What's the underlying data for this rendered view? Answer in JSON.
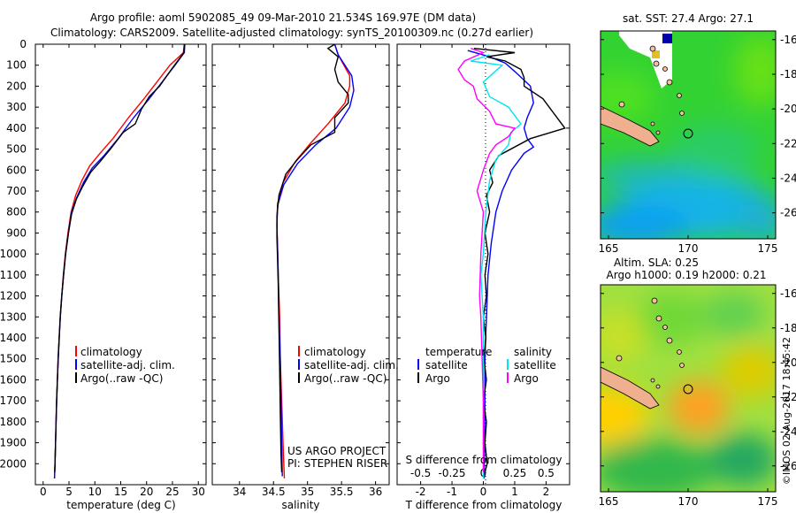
{
  "header": {
    "line1": "Argo profile: aoml 5902085_49 09-Mar-2010 21.534S 169.97E (DM data)",
    "line2": "Climatology: CARS2009. Satellite-adjusted climatology: synTS_20100309.nc (0.27d earlier)"
  },
  "colors": {
    "climatology": "#ff0000",
    "satellite": "#0000ff",
    "argo": "#000000",
    "sat_salinity": "#00e5ee",
    "argo_salinity": "#ff00ff"
  },
  "chart_data": [
    {
      "type": "line",
      "id": "temperature",
      "xlabel": "temperature (deg C)",
      "ylabel": "",
      "xlim": [
        -1.5,
        31.5
      ],
      "ylim": [
        2100,
        0
      ],
      "xticks": [
        "0",
        "5",
        "10",
        "15",
        "20",
        "25",
        "30"
      ],
      "yticks": [
        "0",
        "100",
        "200",
        "300",
        "400",
        "500",
        "600",
        "700",
        "800",
        "900",
        "1000",
        "1100",
        "1200",
        "1300",
        "1400",
        "1500",
        "1600",
        "1700",
        "1800",
        "1900",
        "2000"
      ],
      "legend": [
        "climatology",
        "satellite-adj. clim.",
        "Argo(..raw -QC)"
      ],
      "series": [
        {
          "name": "climatology",
          "points": [
            [
              27.3,
              0
            ],
            [
              27.1,
              40
            ],
            [
              24.5,
              100
            ],
            [
              22,
              180
            ],
            [
              19.5,
              260
            ],
            [
              16.5,
              350
            ],
            [
              13.5,
              450
            ],
            [
              11,
              520
            ],
            [
              9,
              580
            ],
            [
              7.5,
              650
            ],
            [
              6.3,
              720
            ],
            [
              5.4,
              800
            ],
            [
              4.8,
              900
            ],
            [
              4.3,
              1000
            ],
            [
              3.9,
              1100
            ],
            [
              3.6,
              1200
            ],
            [
              3.3,
              1300
            ],
            [
              3.1,
              1400
            ],
            [
              2.9,
              1500
            ],
            [
              2.75,
              1600
            ],
            [
              2.6,
              1700
            ],
            [
              2.5,
              1800
            ],
            [
              2.4,
              1900
            ],
            [
              2.3,
              2000
            ],
            [
              2.2,
              2070
            ]
          ]
        },
        {
          "name": "satellite-adj. clim.",
          "points": [
            [
              27.4,
              0
            ],
            [
              27.3,
              40
            ],
            [
              25.5,
              100
            ],
            [
              23,
              180
            ],
            [
              20.5,
              260
            ],
            [
              17.5,
              350
            ],
            [
              14.5,
              450
            ],
            [
              11.8,
              530
            ],
            [
              9.5,
              590
            ],
            [
              7.8,
              660
            ],
            [
              6.5,
              730
            ],
            [
              5.5,
              800
            ],
            [
              4.9,
              900
            ],
            [
              4.35,
              1000
            ],
            [
              3.95,
              1100
            ],
            [
              3.62,
              1200
            ],
            [
              3.32,
              1300
            ],
            [
              3.12,
              1400
            ],
            [
              2.92,
              1500
            ],
            [
              2.76,
              1600
            ],
            [
              2.62,
              1700
            ],
            [
              2.5,
              1800
            ],
            [
              2.4,
              1900
            ],
            [
              2.3,
              2000
            ],
            [
              2.2,
              2070
            ]
          ]
        },
        {
          "name": "Argo(..raw -QC)",
          "points": [
            [
              27.3,
              0
            ],
            [
              27.2,
              40
            ],
            [
              26,
              80
            ],
            [
              24.5,
              130
            ],
            [
              22.5,
              200
            ],
            [
              20.5,
              250
            ],
            [
              19,
              310
            ],
            [
              17.8,
              380
            ],
            [
              15.5,
              420
            ],
            [
              13,
              500
            ],
            [
              11,
              560
            ],
            [
              9.2,
              610
            ],
            [
              7.6,
              680
            ],
            [
              6.4,
              740
            ],
            [
              5.5,
              810
            ],
            [
              4.9,
              900
            ],
            [
              4.35,
              1000
            ],
            [
              3.95,
              1100
            ],
            [
              3.6,
              1200
            ],
            [
              3.3,
              1300
            ],
            [
              3.1,
              1400
            ],
            [
              2.9,
              1500
            ],
            [
              2.75,
              1600
            ],
            [
              2.6,
              1700
            ],
            [
              2.5,
              1800
            ],
            [
              2.4,
              1900
            ],
            [
              2.3,
              2000
            ],
            [
              2.25,
              2040
            ]
          ]
        }
      ]
    },
    {
      "type": "line",
      "id": "salinity",
      "xlabel": "salinity",
      "xlim": [
        33.6,
        36.2
      ],
      "ylim": [
        2100,
        0
      ],
      "xticks": [
        "34",
        "34.5",
        "35",
        "35.5",
        "36"
      ],
      "legend": [
        "climatology",
        "satellite-adj. clim.",
        "Argo(..raw -QC)"
      ],
      "credit": [
        "US ARGO PROJECT",
        "PI: STEPHEN RISER"
      ],
      "series": [
        {
          "name": "climatology",
          "points": [
            [
              35.4,
              0
            ],
            [
              35.45,
              50
            ],
            [
              35.62,
              150
            ],
            [
              35.62,
              200
            ],
            [
              35.55,
              280
            ],
            [
              35.3,
              380
            ],
            [
              35.05,
              470
            ],
            [
              34.82,
              560
            ],
            [
              34.64,
              660
            ],
            [
              34.56,
              760
            ],
            [
              34.55,
              860
            ],
            [
              34.56,
              960
            ],
            [
              34.57,
              1100
            ],
            [
              34.59,
              1300
            ],
            [
              34.6,
              1500
            ],
            [
              34.62,
              1700
            ],
            [
              34.64,
              1900
            ],
            [
              34.66,
              2070
            ]
          ]
        },
        {
          "name": "satellite-adj. clim.",
          "points": [
            [
              35.4,
              0
            ],
            [
              35.45,
              50
            ],
            [
              35.65,
              150
            ],
            [
              35.68,
              220
            ],
            [
              35.62,
              300
            ],
            [
              35.42,
              400
            ],
            [
              35.12,
              480
            ],
            [
              34.85,
              570
            ],
            [
              34.65,
              670
            ],
            [
              34.56,
              770
            ],
            [
              34.55,
              870
            ],
            [
              34.56,
              970
            ],
            [
              34.57,
              1100
            ],
            [
              34.58,
              1300
            ],
            [
              34.6,
              1500
            ],
            [
              34.61,
              1700
            ],
            [
              34.62,
              1900
            ],
            [
              34.63,
              2060
            ]
          ]
        },
        {
          "name": "Argo(..raw -QC)",
          "points": [
            [
              35.4,
              0
            ],
            [
              35.3,
              20
            ],
            [
              35.45,
              60
            ],
            [
              35.4,
              120
            ],
            [
              35.45,
              180
            ],
            [
              35.6,
              240
            ],
            [
              35.6,
              280
            ],
            [
              35.4,
              350
            ],
            [
              35.4,
              420
            ],
            [
              35.05,
              480
            ],
            [
              34.85,
              550
            ],
            [
              34.68,
              620
            ],
            [
              34.58,
              720
            ],
            [
              34.55,
              820
            ],
            [
              34.55,
              920
            ],
            [
              34.56,
              1020
            ],
            [
              34.57,
              1150
            ],
            [
              34.58,
              1350
            ],
            [
              34.59,
              1550
            ],
            [
              34.6,
              1750
            ],
            [
              34.61,
              1950
            ],
            [
              34.62,
              2040
            ]
          ]
        }
      ]
    },
    {
      "type": "line",
      "id": "differences",
      "xlabel": "T difference from climatology",
      "x2label": "S difference from climatology",
      "xlim": [
        -2.75,
        2.75
      ],
      "ylim": [
        2100,
        0
      ],
      "xticks": [
        "-2",
        "-1",
        "0",
        "1",
        "2"
      ],
      "x2ticks": [
        "-0.5",
        "-0.25",
        "0",
        "0.25",
        "0.5"
      ],
      "legend_t_title": "temperature",
      "legend_s_title": "salinity",
      "legend_t": [
        "satellite",
        "Argo"
      ],
      "legend_s": [
        "satellite",
        "Argo"
      ],
      "series": [
        {
          "name": "T satellite",
          "points": [
            [
              -0.5,
              30
            ],
            [
              0.2,
              60
            ],
            [
              0.7,
              90
            ],
            [
              1.0,
              130
            ],
            [
              1.5,
              200
            ],
            [
              1.6,
              280
            ],
            [
              1.4,
              350
            ],
            [
              1.3,
              400
            ],
            [
              1.4,
              450
            ],
            [
              1.6,
              490
            ],
            [
              1.3,
              520
            ],
            [
              0.9,
              600
            ],
            [
              0.6,
              700
            ],
            [
              0.4,
              800
            ],
            [
              0.25,
              950
            ],
            [
              0.15,
              1100
            ],
            [
              0.1,
              1300
            ],
            [
              0.05,
              1500
            ],
            [
              0.05,
              1700
            ],
            [
              0.04,
              1900
            ],
            [
              0.03,
              2070
            ]
          ]
        },
        {
          "name": "T Argo",
          "points": [
            [
              -0.3,
              20
            ],
            [
              1.0,
              40
            ],
            [
              0.1,
              60
            ],
            [
              0.7,
              80
            ],
            [
              1.2,
              120
            ],
            [
              1.3,
              160
            ],
            [
              1.3,
              200
            ],
            [
              1.9,
              260
            ],
            [
              2.3,
              340
            ],
            [
              2.6,
              400
            ],
            [
              1.5,
              450
            ],
            [
              0.5,
              530
            ],
            [
              0.2,
              600
            ],
            [
              0.3,
              660
            ],
            [
              0.1,
              720
            ],
            [
              0.2,
              800
            ],
            [
              0.05,
              900
            ],
            [
              0.15,
              1000
            ],
            [
              0.05,
              1100
            ],
            [
              0.1,
              1200
            ],
            [
              0.0,
              1300
            ],
            [
              0.08,
              1400
            ],
            [
              0.02,
              1500
            ],
            [
              0.1,
              1600
            ],
            [
              0.0,
              1700
            ],
            [
              0.1,
              1800
            ],
            [
              0.05,
              1900
            ],
            [
              0.12,
              2000
            ],
            [
              0.05,
              2040
            ]
          ]
        },
        {
          "name": "S satellite",
          "points": [
            [
              0.05,
              50
            ],
            [
              -0.1,
              80
            ],
            [
              0.15,
              100
            ],
            [
              0.0,
              180
            ],
            [
              0.05,
              250
            ],
            [
              0.2,
              300
            ],
            [
              0.3,
              380
            ],
            [
              0.22,
              420
            ],
            [
              0.2,
              480
            ],
            [
              0.1,
              550
            ],
            [
              0.05,
              650
            ],
            [
              0.02,
              800
            ],
            [
              0.0,
              1000
            ],
            [
              -0.02,
              1100
            ],
            [
              0.0,
              1300
            ],
            [
              0.0,
              1500
            ],
            [
              0.0,
              1800
            ],
            [
              0.0,
              2070
            ]
          ]
        },
        {
          "name": "S Argo",
          "points": [
            [
              -0.1,
              20
            ],
            [
              0.0,
              40
            ],
            [
              -0.15,
              80
            ],
            [
              -0.2,
              120
            ],
            [
              -0.15,
              170
            ],
            [
              -0.08,
              200
            ],
            [
              -0.05,
              260
            ],
            [
              0.05,
              320
            ],
            [
              0.1,
              380
            ],
            [
              0.25,
              400
            ],
            [
              0.2,
              440
            ],
            [
              0.1,
              480
            ],
            [
              0.05,
              520
            ],
            [
              0.0,
              600
            ],
            [
              -0.05,
              700
            ],
            [
              0.0,
              800
            ],
            [
              -0.02,
              1000
            ],
            [
              -0.03,
              1200
            ],
            [
              -0.02,
              1300
            ],
            [
              -0.01,
              1500
            ],
            [
              0.0,
              1700
            ],
            [
              0.0,
              1900
            ],
            [
              0.0,
              2040
            ]
          ]
        }
      ]
    },
    {
      "type": "heatmap",
      "id": "sst_map",
      "title": "sat. SST: 27.4  Argo: 27.1",
      "xticks": [
        "165",
        "170",
        "175"
      ],
      "yticks": [
        "-16",
        "-18",
        "-20",
        "-22",
        "-24",
        "-26"
      ],
      "xlim": [
        164.5,
        175.5
      ],
      "ylim": [
        -27.5,
        -15.5
      ],
      "argo_position": [
        169.97,
        -21.534
      ]
    },
    {
      "type": "heatmap",
      "id": "sla_map",
      "title_line1": "Altim. SLA: 0.25",
      "title_line2": "Argo h1000: 0.19 h2000: 0.21",
      "xticks": [
        "165",
        "170",
        "175"
      ],
      "yticks": [
        "-16",
        "-18",
        "-20",
        "-22",
        "-24",
        "-26"
      ],
      "xlim": [
        164.5,
        175.5
      ],
      "ylim": [
        -27.5,
        -15.5
      ],
      "argo_position": [
        169.97,
        -21.534
      ]
    }
  ],
  "footer": {
    "imos": "©IMOS 02-Aug-2017 18:45:42"
  }
}
